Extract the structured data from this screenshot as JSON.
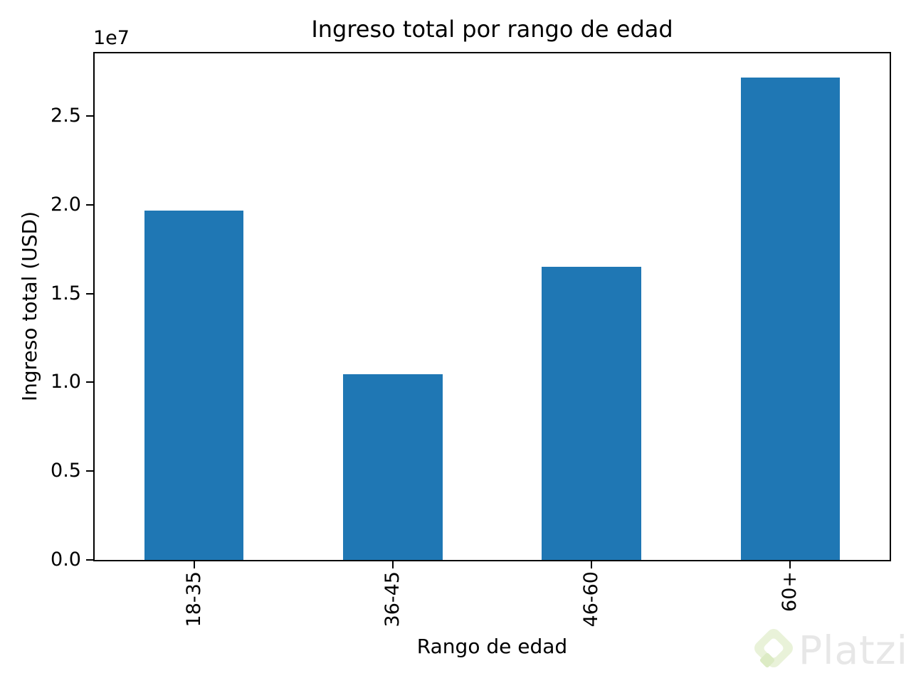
{
  "figure": {
    "background": "#ffffff"
  },
  "chart_data": {
    "type": "bar",
    "title": "Ingreso total por rango de edad",
    "xlabel": "Rango de edad",
    "ylabel": "Ingreso total (USD)",
    "offset_text": "1e7",
    "categories": [
      "18-35",
      "36-45",
      "46-60",
      "60+"
    ],
    "values": [
      19660000,
      10460000,
      16510000,
      27170000
    ],
    "bar_color": "#1f77b4",
    "ylim": [
      0,
      28530000
    ],
    "yticks": [
      {
        "value": 0,
        "label": "0.0"
      },
      {
        "value": 5000000,
        "label": "0.5"
      },
      {
        "value": 10000000,
        "label": "1.0"
      },
      {
        "value": 15000000,
        "label": "1.5"
      },
      {
        "value": 20000000,
        "label": "2.0"
      },
      {
        "value": 25000000,
        "label": "2.5"
      }
    ],
    "grid": false,
    "legend_position": "none",
    "bar_width_fraction": 0.5
  },
  "watermark": {
    "text": "Platzi",
    "logo_icon": "platzi-diamond-logo",
    "text_color": "#e7e7e7",
    "logo_color": "#e9f2d9",
    "logo_accent_color": "#dcebc4"
  }
}
